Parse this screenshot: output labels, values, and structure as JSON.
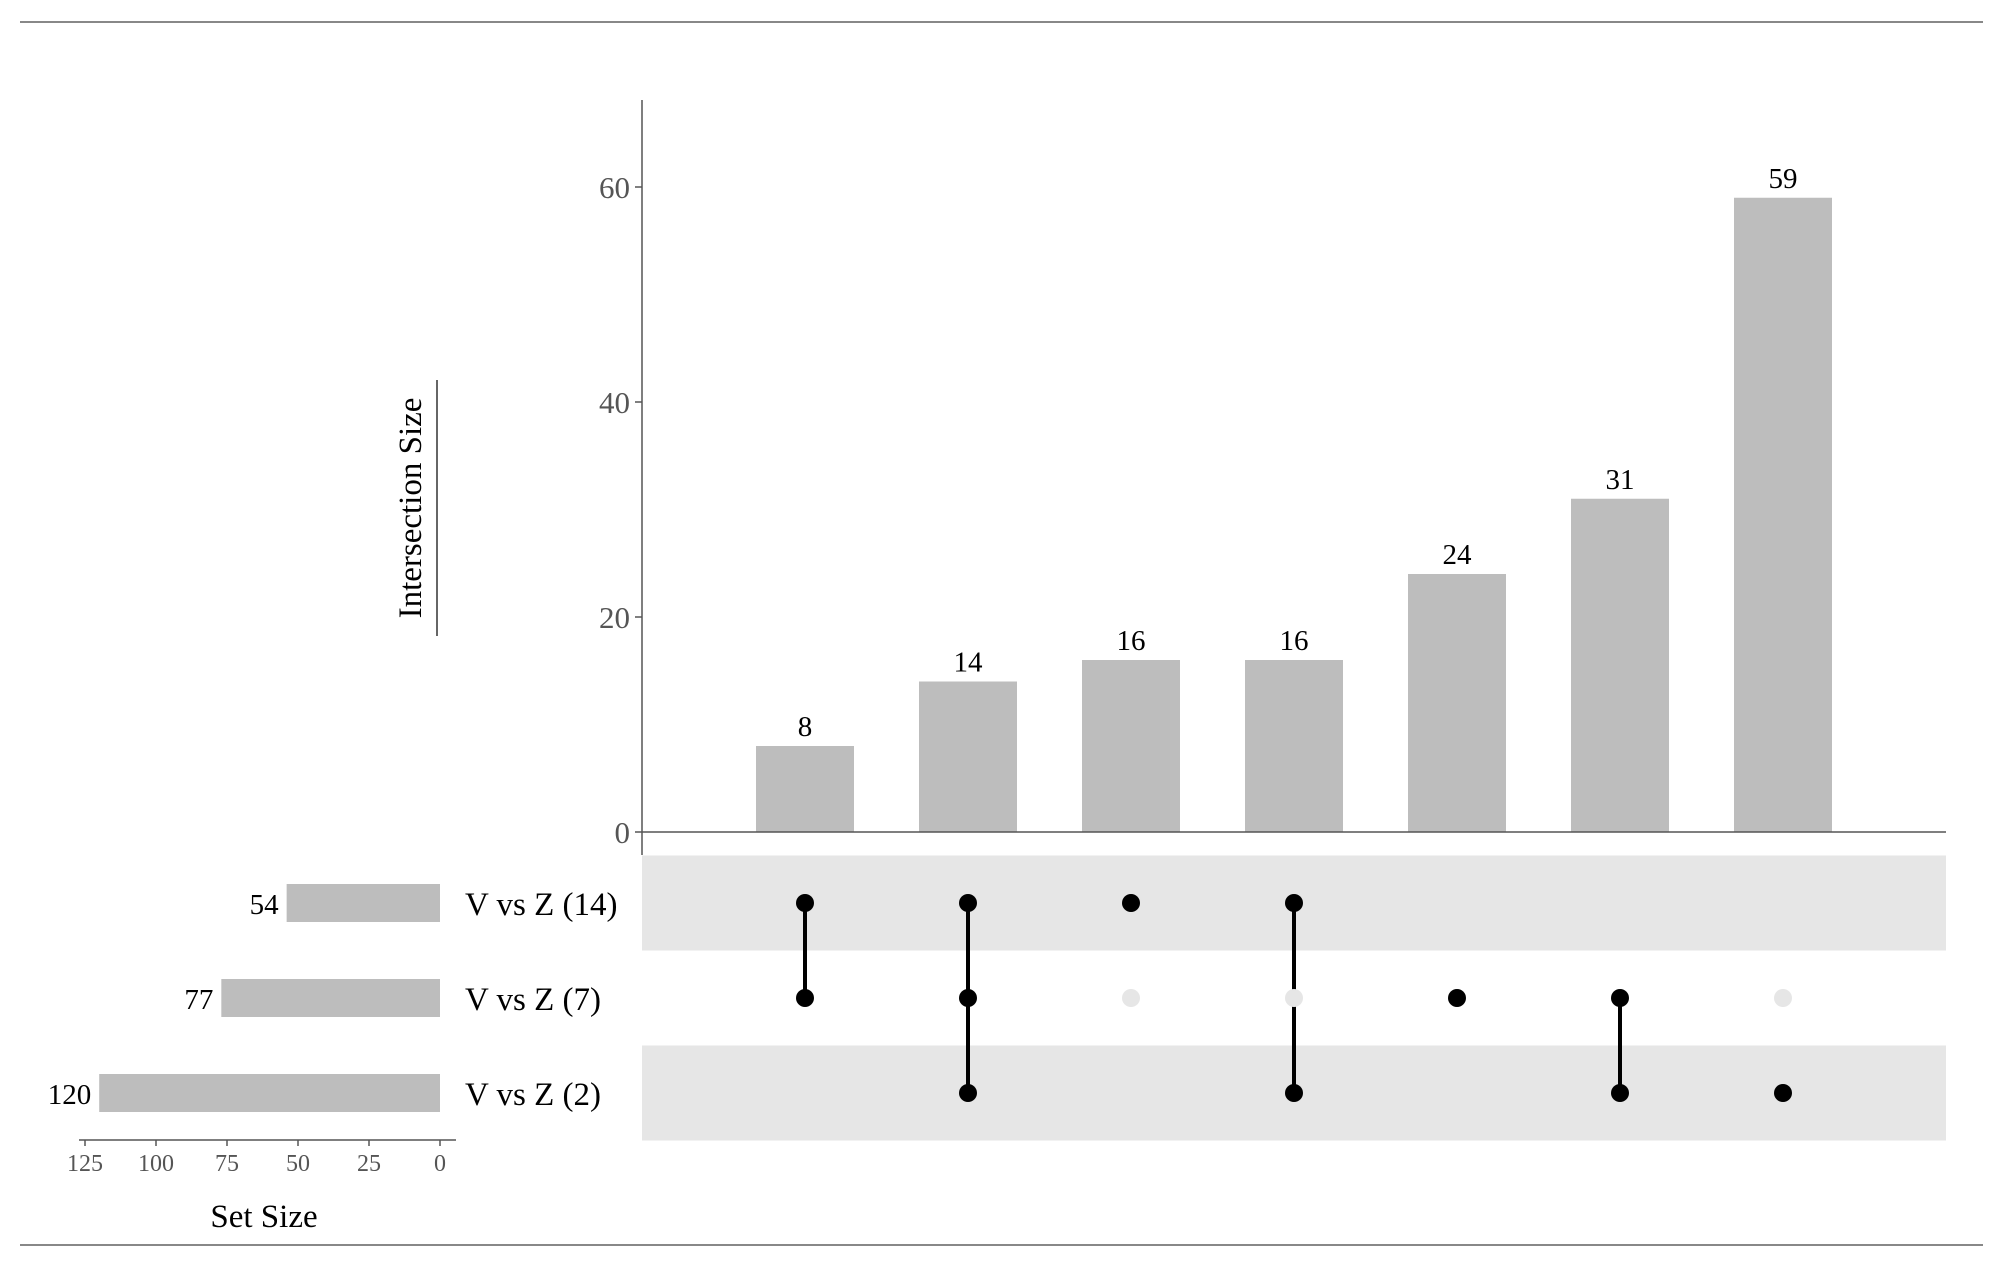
{
  "chart_data": {
    "type": "bar",
    "subtype": "upset",
    "ylabel": "Intersection Size",
    "xlabel": "Set Size",
    "yticks": [
      0,
      20,
      40,
      60
    ],
    "ylim": [
      0,
      68
    ],
    "set_size_ticks": [
      125,
      100,
      75,
      50,
      25,
      0
    ],
    "set_size_xlim": [
      125,
      0
    ],
    "bar_color": "#bdbdbd",
    "dot_active_color": "#000000",
    "dot_inactive_color": "#e6e6e6",
    "stripe_color": "#e6e6e6",
    "sets": [
      {
        "name": "V vs Z (14)",
        "size": 54
      },
      {
        "name": "V vs Z (7)",
        "size": 77
      },
      {
        "name": "V vs Z (2)",
        "size": 120
      }
    ],
    "intersections": [
      {
        "value": 8,
        "label": "8",
        "members": [
          0,
          1
        ]
      },
      {
        "value": 14,
        "label": "14",
        "members": [
          0,
          1,
          2
        ]
      },
      {
        "value": 16,
        "label": "16",
        "members": [
          0
        ]
      },
      {
        "value": 16,
        "label": "16",
        "members": [
          0,
          2
        ]
      },
      {
        "value": 24,
        "label": "24",
        "members": [
          1
        ]
      },
      {
        "value": 31,
        "label": "31",
        "members": [
          1,
          2
        ]
      },
      {
        "value": 59,
        "label": "59",
        "members": [
          2
        ]
      }
    ]
  }
}
